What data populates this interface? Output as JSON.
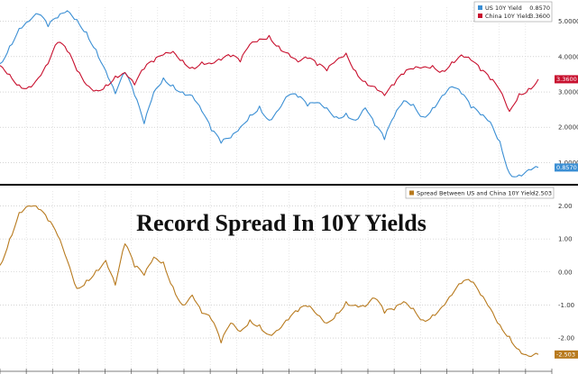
{
  "chart_data": [
    {
      "type": "line",
      "legend": [
        {
          "name": "US 10Y Yield",
          "value": "0.8570",
          "color": "#3b8fd4"
        },
        {
          "name": "China 10Y Yield",
          "value": "3.3600",
          "color": "#c8102e"
        }
      ],
      "legend_placement": "top-right",
      "yticks": [
        "5.0000",
        "4.0000",
        "3.0000",
        "2.0000",
        "1.0000"
      ],
      "ytick_values": [
        5,
        4,
        3,
        2,
        1
      ],
      "ylim": [
        0.5,
        5.4
      ],
      "grid": true,
      "series": [
        {
          "name": "US 10Y Yield",
          "color": "#3b8fd4",
          "last_label": "0.8570",
          "values": [
            3.8,
            4.3,
            4.8,
            5.0,
            5.2,
            4.85,
            5.1,
            5.3,
            5.05,
            4.7,
            4.2,
            3.6,
            2.95,
            3.55,
            2.9,
            2.1,
            3.0,
            3.4,
            3.2,
            3.0,
            2.9,
            2.45,
            1.9,
            1.55,
            1.7,
            2.0,
            2.35,
            2.6,
            2.2,
            2.5,
            2.9,
            2.85,
            2.6,
            2.7,
            2.55,
            2.3,
            2.4,
            2.2,
            2.55,
            2.05,
            1.65,
            2.3,
            2.75,
            2.65,
            2.3,
            2.55,
            2.9,
            3.15,
            2.95,
            2.55,
            2.35,
            2.15,
            1.6,
            0.7,
            0.65,
            0.8,
            0.86
          ]
        },
        {
          "name": "China 10Y Yield",
          "color": "#c8102e",
          "last_label": "3.3600",
          "values": [
            3.75,
            3.5,
            3.2,
            3.15,
            3.4,
            3.8,
            4.4,
            4.15,
            3.6,
            3.2,
            3.05,
            3.2,
            3.45,
            3.55,
            3.2,
            3.65,
            3.85,
            4.05,
            4.15,
            3.9,
            3.7,
            3.85,
            3.8,
            3.9,
            4.0,
            3.85,
            4.35,
            4.5,
            4.6,
            4.3,
            4.1,
            3.85,
            3.95,
            3.75,
            3.6,
            3.9,
            4.1,
            3.6,
            3.3,
            3.15,
            2.9,
            3.2,
            3.5,
            3.65,
            3.7,
            3.75,
            3.6,
            3.85,
            4.05,
            3.9,
            3.6,
            3.35,
            3.05,
            2.45,
            2.95,
            3.1,
            3.36
          ]
        }
      ]
    },
    {
      "type": "line",
      "title": "Record Spread In 10Y Yields",
      "legend": [
        {
          "name": "Spread Between US and China 10Y Yield",
          "value": "-2.503",
          "color": "#b87a1e"
        }
      ],
      "legend_placement": "top-right",
      "yticks": [
        "2.00",
        "1.00",
        "0.00",
        "-1.00",
        "-2.00"
      ],
      "ytick_values": [
        2,
        1,
        0,
        -1,
        -2
      ],
      "ylim": [
        -2.9,
        2.45
      ],
      "grid": true,
      "series": [
        {
          "name": "Spread Between US and China 10Y Yield",
          "color": "#b87a1e",
          "last_label": "-2.503",
          "values": [
            0.2,
            1.0,
            1.8,
            2.0,
            1.9,
            1.55,
            1.1,
            0.35,
            -0.5,
            -0.25,
            0.05,
            0.35,
            -0.4,
            0.85,
            0.15,
            -0.1,
            0.45,
            0.3,
            -0.45,
            -1.0,
            -0.7,
            -1.25,
            -1.45,
            -2.15,
            -1.55,
            -1.8,
            -1.45,
            -1.6,
            -1.9,
            -1.75,
            -1.45,
            -1.2,
            -1.05,
            -1.3,
            -1.55,
            -1.25,
            -0.9,
            -1.0,
            -1.05,
            -0.8,
            -1.25,
            -1.15,
            -0.9,
            -1.1,
            -1.45,
            -1.3,
            -1.05,
            -0.7,
            -0.35,
            -0.3,
            -0.7,
            -1.1,
            -1.6,
            -1.95,
            -2.35,
            -2.55,
            -2.5
          ]
        }
      ]
    }
  ]
}
